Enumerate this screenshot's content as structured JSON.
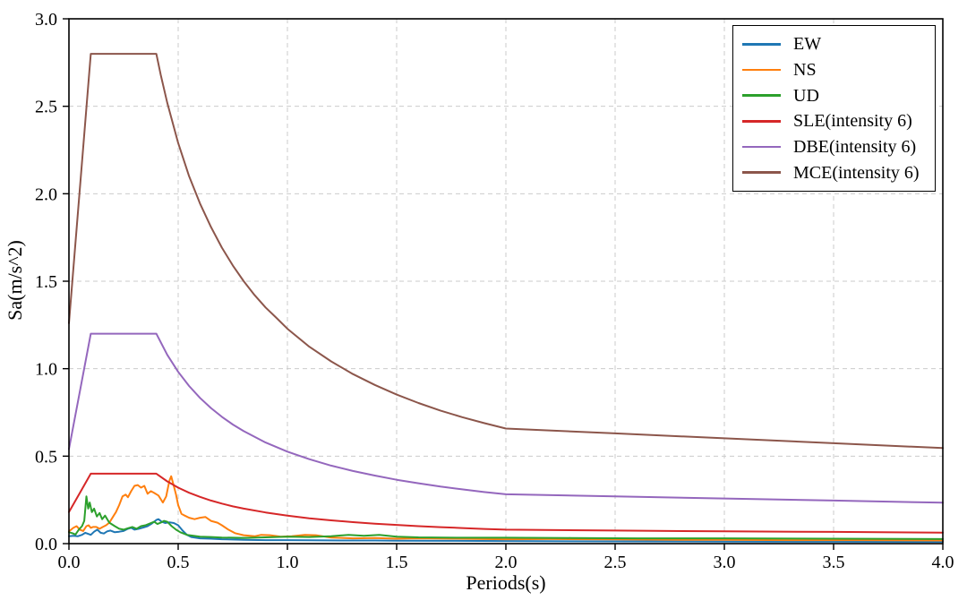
{
  "chart_data": {
    "type": "line",
    "title": "",
    "xlabel": "Periods(s)",
    "ylabel": "Sa(m/s^2)",
    "xlim": [
      0,
      4
    ],
    "ylim": [
      0,
      3
    ],
    "xticks": {
      "values": [
        0,
        0.5,
        1.0,
        1.5,
        2.0,
        2.5,
        3.0,
        3.5,
        4.0
      ],
      "labels": [
        "0.0",
        "0.5",
        "1.0",
        "1.5",
        "2.0",
        "2.5",
        "3.0",
        "3.5",
        "4.0"
      ]
    },
    "yticks": {
      "values": [
        0,
        0.5,
        1.0,
        1.5,
        2.0,
        2.5,
        3.0
      ],
      "labels": [
        "0.0",
        "0.5",
        "1.0",
        "1.5",
        "2.0",
        "2.5",
        "3.0"
      ]
    },
    "grid": {
      "visible": true,
      "style": "dashed",
      "color": "#cbcbcb"
    },
    "axis_color": "#000000",
    "legend": {
      "position": "upper right",
      "border_color": "#000000",
      "background": "#ffffff"
    },
    "series": [
      {
        "name": "EW",
        "color": "#1f77b4",
        "points": [
          [
            0,
            0.042
          ],
          [
            0.02,
            0.045
          ],
          [
            0.04,
            0.042
          ],
          [
            0.06,
            0.05
          ],
          [
            0.075,
            0.062
          ],
          [
            0.09,
            0.055
          ],
          [
            0.1,
            0.05
          ],
          [
            0.115,
            0.068
          ],
          [
            0.13,
            0.08
          ],
          [
            0.145,
            0.062
          ],
          [
            0.16,
            0.058
          ],
          [
            0.175,
            0.07
          ],
          [
            0.19,
            0.075
          ],
          [
            0.21,
            0.065
          ],
          [
            0.23,
            0.068
          ],
          [
            0.25,
            0.072
          ],
          [
            0.27,
            0.085
          ],
          [
            0.285,
            0.09
          ],
          [
            0.3,
            0.08
          ],
          [
            0.32,
            0.085
          ],
          [
            0.34,
            0.092
          ],
          [
            0.36,
            0.1
          ],
          [
            0.38,
            0.115
          ],
          [
            0.4,
            0.135
          ],
          [
            0.41,
            0.14
          ],
          [
            0.425,
            0.125
          ],
          [
            0.44,
            0.118
          ],
          [
            0.46,
            0.122
          ],
          [
            0.48,
            0.118
          ],
          [
            0.5,
            0.105
          ],
          [
            0.52,
            0.075
          ],
          [
            0.54,
            0.05
          ],
          [
            0.56,
            0.038
          ],
          [
            0.6,
            0.03
          ],
          [
            0.65,
            0.028
          ],
          [
            0.7,
            0.025
          ],
          [
            0.8,
            0.022
          ],
          [
            0.9,
            0.02
          ],
          [
            1.0,
            0.02
          ],
          [
            1.1,
            0.019
          ],
          [
            1.25,
            0.018
          ],
          [
            1.4,
            0.018
          ],
          [
            1.5,
            0.017
          ],
          [
            1.75,
            0.016
          ],
          [
            2.0,
            0.015
          ],
          [
            2.5,
            0.013
          ],
          [
            3.0,
            0.012
          ],
          [
            3.5,
            0.011
          ],
          [
            4.0,
            0.01
          ]
        ]
      },
      {
        "name": "NS",
        "color": "#ff7f0e",
        "points": [
          [
            0,
            0.07
          ],
          [
            0.02,
            0.09
          ],
          [
            0.035,
            0.1
          ],
          [
            0.05,
            0.08
          ],
          [
            0.065,
            0.072
          ],
          [
            0.08,
            0.1
          ],
          [
            0.09,
            0.105
          ],
          [
            0.1,
            0.09
          ],
          [
            0.11,
            0.095
          ],
          [
            0.125,
            0.095
          ],
          [
            0.14,
            0.085
          ],
          [
            0.155,
            0.095
          ],
          [
            0.17,
            0.105
          ],
          [
            0.185,
            0.12
          ],
          [
            0.2,
            0.15
          ],
          [
            0.215,
            0.18
          ],
          [
            0.23,
            0.22
          ],
          [
            0.245,
            0.27
          ],
          [
            0.26,
            0.28
          ],
          [
            0.27,
            0.265
          ],
          [
            0.285,
            0.3
          ],
          [
            0.3,
            0.33
          ],
          [
            0.315,
            0.335
          ],
          [
            0.33,
            0.32
          ],
          [
            0.345,
            0.33
          ],
          [
            0.36,
            0.285
          ],
          [
            0.375,
            0.3
          ],
          [
            0.39,
            0.29
          ],
          [
            0.41,
            0.275
          ],
          [
            0.43,
            0.235
          ],
          [
            0.445,
            0.27
          ],
          [
            0.46,
            0.36
          ],
          [
            0.468,
            0.385
          ],
          [
            0.478,
            0.34
          ],
          [
            0.49,
            0.28
          ],
          [
            0.5,
            0.22
          ],
          [
            0.515,
            0.17
          ],
          [
            0.53,
            0.16
          ],
          [
            0.55,
            0.148
          ],
          [
            0.575,
            0.14
          ],
          [
            0.6,
            0.148
          ],
          [
            0.625,
            0.152
          ],
          [
            0.65,
            0.13
          ],
          [
            0.68,
            0.12
          ],
          [
            0.7,
            0.105
          ],
          [
            0.73,
            0.08
          ],
          [
            0.76,
            0.06
          ],
          [
            0.8,
            0.048
          ],
          [
            0.85,
            0.042
          ],
          [
            0.88,
            0.05
          ],
          [
            0.92,
            0.048
          ],
          [
            0.97,
            0.04
          ],
          [
            1.02,
            0.042
          ],
          [
            1.08,
            0.05
          ],
          [
            1.13,
            0.048
          ],
          [
            1.2,
            0.035
          ],
          [
            1.3,
            0.03
          ],
          [
            1.4,
            0.032
          ],
          [
            1.5,
            0.028
          ],
          [
            1.6,
            0.03
          ],
          [
            1.75,
            0.028
          ],
          [
            1.9,
            0.026
          ],
          [
            2.0,
            0.025
          ],
          [
            2.2,
            0.026
          ],
          [
            2.5,
            0.024
          ],
          [
            2.8,
            0.022
          ],
          [
            3.0,
            0.022
          ],
          [
            3.3,
            0.02
          ],
          [
            3.6,
            0.02
          ],
          [
            4.0,
            0.018
          ]
        ]
      },
      {
        "name": "UD",
        "color": "#2ca02c",
        "points": [
          [
            0,
            0.065
          ],
          [
            0.015,
            0.06
          ],
          [
            0.03,
            0.052
          ],
          [
            0.045,
            0.08
          ],
          [
            0.06,
            0.1
          ],
          [
            0.07,
            0.13
          ],
          [
            0.08,
            0.27
          ],
          [
            0.088,
            0.2
          ],
          [
            0.095,
            0.235
          ],
          [
            0.105,
            0.18
          ],
          [
            0.115,
            0.2
          ],
          [
            0.128,
            0.155
          ],
          [
            0.14,
            0.175
          ],
          [
            0.152,
            0.14
          ],
          [
            0.165,
            0.16
          ],
          [
            0.185,
            0.12
          ],
          [
            0.21,
            0.1
          ],
          [
            0.23,
            0.085
          ],
          [
            0.25,
            0.08
          ],
          [
            0.27,
            0.088
          ],
          [
            0.29,
            0.095
          ],
          [
            0.31,
            0.085
          ],
          [
            0.33,
            0.1
          ],
          [
            0.35,
            0.105
          ],
          [
            0.37,
            0.115
          ],
          [
            0.39,
            0.125
          ],
          [
            0.405,
            0.112
          ],
          [
            0.42,
            0.12
          ],
          [
            0.435,
            0.13
          ],
          [
            0.45,
            0.125
          ],
          [
            0.47,
            0.1
          ],
          [
            0.49,
            0.08
          ],
          [
            0.51,
            0.065
          ],
          [
            0.54,
            0.05
          ],
          [
            0.57,
            0.045
          ],
          [
            0.6,
            0.04
          ],
          [
            0.65,
            0.038
          ],
          [
            0.7,
            0.035
          ],
          [
            0.8,
            0.033
          ],
          [
            0.9,
            0.036
          ],
          [
            1.0,
            0.04
          ],
          [
            1.1,
            0.038
          ],
          [
            1.2,
            0.042
          ],
          [
            1.28,
            0.05
          ],
          [
            1.35,
            0.045
          ],
          [
            1.42,
            0.05
          ],
          [
            1.5,
            0.04
          ],
          [
            1.6,
            0.036
          ],
          [
            1.8,
            0.034
          ],
          [
            2.0,
            0.034
          ],
          [
            2.3,
            0.032
          ],
          [
            2.6,
            0.03
          ],
          [
            3.0,
            0.03
          ],
          [
            3.5,
            0.028
          ],
          [
            4.0,
            0.026
          ]
        ]
      },
      {
        "name": "SLE(intensity 6)",
        "color": "#d62728",
        "points": [
          [
            0,
            0.18
          ],
          [
            0.05,
            0.29
          ],
          [
            0.1,
            0.4
          ],
          [
            0.4,
            0.4
          ],
          [
            0.45,
            0.356
          ],
          [
            0.5,
            0.32
          ],
          [
            0.55,
            0.291
          ],
          [
            0.6,
            0.267
          ],
          [
            0.65,
            0.246
          ],
          [
            0.7,
            0.229
          ],
          [
            0.75,
            0.213
          ],
          [
            0.8,
            0.2
          ],
          [
            0.9,
            0.178
          ],
          [
            1.0,
            0.16
          ],
          [
            1.1,
            0.145
          ],
          [
            1.2,
            0.133
          ],
          [
            1.3,
            0.123
          ],
          [
            1.4,
            0.114
          ],
          [
            1.5,
            0.107
          ],
          [
            1.6,
            0.1
          ],
          [
            1.7,
            0.094
          ],
          [
            1.8,
            0.089
          ],
          [
            1.9,
            0.084
          ],
          [
            2.0,
            0.08
          ],
          [
            2.5,
            0.075
          ],
          [
            3.0,
            0.07
          ],
          [
            3.5,
            0.067
          ],
          [
            4.0,
            0.063
          ]
        ]
      },
      {
        "name": "DBE(intensity 6)",
        "color": "#9467bd",
        "points": [
          [
            0,
            0.54
          ],
          [
            0.05,
            0.87
          ],
          [
            0.1,
            1.2
          ],
          [
            0.4,
            1.2
          ],
          [
            0.45,
            1.079
          ],
          [
            0.5,
            0.982
          ],
          [
            0.55,
            0.901
          ],
          [
            0.6,
            0.833
          ],
          [
            0.65,
            0.775
          ],
          [
            0.7,
            0.725
          ],
          [
            0.75,
            0.681
          ],
          [
            0.8,
            0.643
          ],
          [
            0.9,
            0.578
          ],
          [
            1.0,
            0.526
          ],
          [
            1.1,
            0.483
          ],
          [
            1.2,
            0.446
          ],
          [
            1.3,
            0.415
          ],
          [
            1.4,
            0.389
          ],
          [
            1.5,
            0.365
          ],
          [
            1.6,
            0.345
          ],
          [
            1.7,
            0.326
          ],
          [
            1.8,
            0.31
          ],
          [
            1.9,
            0.295
          ],
          [
            2.0,
            0.282
          ],
          [
            2.5,
            0.27
          ],
          [
            3.0,
            0.258
          ],
          [
            3.5,
            0.246
          ],
          [
            4.0,
            0.234
          ]
        ]
      },
      {
        "name": "MCE(intensity 6)",
        "color": "#8c564b",
        "points": [
          [
            0,
            1.26
          ],
          [
            0.05,
            2.03
          ],
          [
            0.1,
            2.8
          ],
          [
            0.4,
            2.8
          ],
          [
            0.42,
            2.68
          ],
          [
            0.45,
            2.52
          ],
          [
            0.5,
            2.29
          ],
          [
            0.55,
            2.1
          ],
          [
            0.6,
            1.944
          ],
          [
            0.65,
            1.81
          ],
          [
            0.7,
            1.692
          ],
          [
            0.75,
            1.59
          ],
          [
            0.8,
            1.5
          ],
          [
            0.85,
            1.42
          ],
          [
            0.9,
            1.35
          ],
          [
            0.95,
            1.29
          ],
          [
            1.0,
            1.228
          ],
          [
            1.1,
            1.126
          ],
          [
            1.2,
            1.042
          ],
          [
            1.3,
            0.969
          ],
          [
            1.4,
            0.907
          ],
          [
            1.5,
            0.852
          ],
          [
            1.6,
            0.804
          ],
          [
            1.7,
            0.761
          ],
          [
            1.8,
            0.723
          ],
          [
            1.9,
            0.689
          ],
          [
            2.0,
            0.658
          ],
          [
            2.5,
            0.63
          ],
          [
            3.0,
            0.602
          ],
          [
            3.5,
            0.574
          ],
          [
            4.0,
            0.546
          ]
        ]
      }
    ]
  }
}
